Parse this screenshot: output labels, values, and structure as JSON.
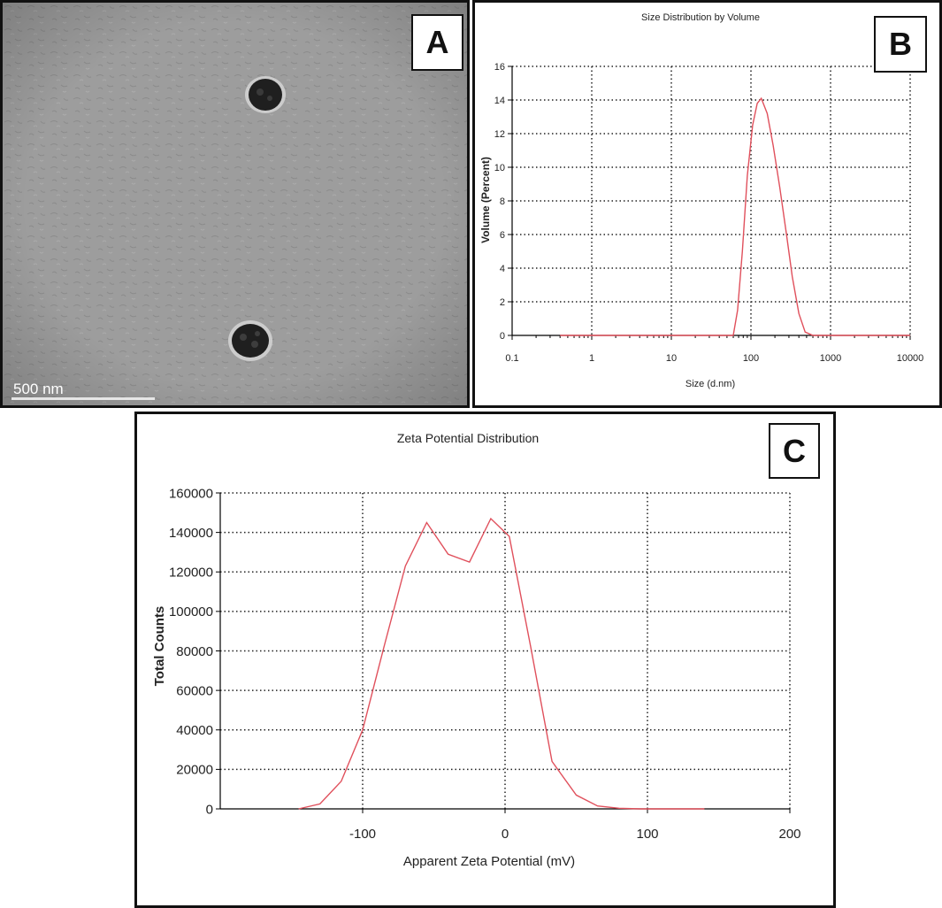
{
  "panels": {
    "a": {
      "letter": "A",
      "scale_bar_label": "500 nm"
    },
    "b": {
      "letter": "B"
    },
    "c": {
      "letter": "C"
    }
  },
  "colors": {
    "curve": "#e0505c",
    "grid": "#222222",
    "tem_background": "#9c9c9c"
  },
  "chart_data": [
    {
      "type": "line",
      "title": "Size Distribution by Volume",
      "xlabel": "Size (d.nm)",
      "ylabel": "Volume (Percent)",
      "x_scale": "log",
      "xlim": [
        0.1,
        10000
      ],
      "ylim": [
        0,
        16
      ],
      "x_ticks": [
        0.1,
        1,
        10,
        100,
        1000,
        10000
      ],
      "x_tick_labels": [
        "0.1",
        "1",
        "10",
        "100",
        "1000",
        "10000"
      ],
      "y_ticks": [
        0,
        2,
        4,
        6,
        8,
        10,
        12,
        14,
        16
      ],
      "y_tick_labels": [
        "0",
        "2",
        "4",
        "6",
        "8",
        "10",
        "12",
        "14",
        "16"
      ],
      "grid": true,
      "series": [
        {
          "x": [
            0.4,
            10,
            50,
            60,
            68,
            78,
            90,
            105,
            120,
            135,
            160,
            190,
            230,
            280,
            330,
            400,
            480,
            600,
            1000,
            10000
          ],
          "y": [
            0,
            0,
            0,
            0,
            1.5,
            5,
            9.5,
            12.5,
            13.8,
            14.1,
            13.2,
            11.3,
            8.8,
            6.0,
            3.5,
            1.3,
            0.2,
            0,
            0,
            0
          ]
        }
      ]
    },
    {
      "type": "line",
      "title": "Zeta Potential Distribution",
      "xlabel": "Apparent Zeta Potential (mV)",
      "ylabel": "Total Counts",
      "xlim": [
        -200,
        200
      ],
      "ylim": [
        0,
        160000
      ],
      "x_ticks": [
        -100,
        0,
        100,
        200
      ],
      "x_tick_labels": [
        "-100",
        "0",
        "100",
        "200"
      ],
      "y_ticks": [
        0,
        20000,
        40000,
        60000,
        80000,
        100000,
        120000,
        140000,
        160000
      ],
      "y_tick_labels": [
        "0",
        "20000",
        "40000",
        "60000",
        "80000",
        "100000",
        "120000",
        "140000",
        "160000"
      ],
      "grid": true,
      "series": [
        {
          "x": [
            -145,
            -130,
            -115,
            -100,
            -85,
            -70,
            -55,
            -40,
            -25,
            -10,
            3,
            18,
            33,
            50,
            65,
            80,
            95,
            110,
            125,
            140
          ],
          "y": [
            0,
            2500,
            14000,
            40000,
            82000,
            123000,
            145000,
            129000,
            125000,
            147000,
            138000,
            82000,
            24000,
            7000,
            1500,
            300,
            0,
            0,
            0,
            0
          ]
        }
      ]
    }
  ]
}
